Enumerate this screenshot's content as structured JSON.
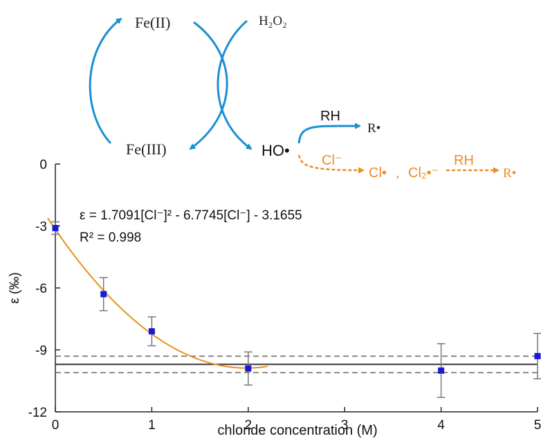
{
  "diagram": {
    "fe2": "Fe(II)",
    "fe3": "Fe(III)",
    "h2o2": "H₂O₂",
    "ho_radical": "HO•",
    "rh_1": "RH",
    "r_radical_1": "R•",
    "cl_minus": "Cl⁻",
    "cl_radical": "Cl•",
    "comma": ",",
    "cl2_radical": "Cl₂•⁻",
    "rh_2": "RH",
    "r_radical_2": "R•",
    "colors": {
      "blue": "#1a8fd0",
      "orange": "#ef8a27"
    }
  },
  "chart_data": {
    "type": "scatter",
    "xlabel": "chloride concentration (M)",
    "ylabel": "ε (‰)",
    "xlim": [
      0,
      5
    ],
    "ylim": [
      -12,
      0
    ],
    "x_ticks": [
      "0",
      "1",
      "2",
      "3",
      "4",
      "5"
    ],
    "y_ticks": [
      "0",
      "-3",
      "-6",
      "-9",
      "-12"
    ],
    "series": [
      {
        "marker": "square",
        "color": "#1a1ad6",
        "points": [
          {
            "x": 0,
            "y": -3.1,
            "err": 0.3
          },
          {
            "x": 0.5,
            "y": -6.3,
            "err": 0.8
          },
          {
            "x": 1,
            "y": -8.1,
            "err": 0.7
          },
          {
            "x": 2,
            "y": -9.9,
            "err": 0.8
          },
          {
            "x": 4,
            "y": -10.0,
            "err": 1.3
          },
          {
            "x": 5,
            "y": -9.3,
            "err": 1.1
          }
        ]
      }
    ],
    "fit": {
      "equation": "ε = 1.7091[Cl⁻]² - 6.7745[Cl⁻] - 3.1655",
      "r2": "R² = 0.998",
      "a": 1.7091,
      "b": -6.7745,
      "c": -3.1655,
      "x_range": [
        -0.08,
        2.2
      ],
      "color": "#e8901e"
    },
    "plateau": {
      "mean": -9.7,
      "lower": -10.1,
      "upper": -9.3
    },
    "grid": false
  }
}
